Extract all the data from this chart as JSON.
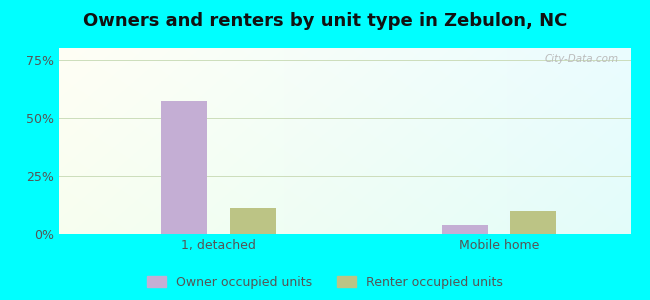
{
  "title": "Owners and renters by unit type in Zebulon, NC",
  "categories": [
    "1, detached",
    "Mobile home"
  ],
  "owner_values": [
    57,
    4
  ],
  "renter_values": [
    11,
    10
  ],
  "owner_color": "#c4aed4",
  "renter_color": "#bcc485",
  "yticks": [
    0,
    25,
    50,
    75
  ],
  "ytick_labels": [
    "0%",
    "25%",
    "50%",
    "75%"
  ],
  "ylim": [
    0,
    80
  ],
  "bar_width": 0.08,
  "legend_owner": "Owner occupied units",
  "legend_renter": "Renter occupied units",
  "title_fontsize": 13,
  "tick_fontsize": 9,
  "legend_fontsize": 9,
  "watermark": "City-Data.com",
  "outer_bg": "#00ffff",
  "grid_color": "#ddeecc"
}
